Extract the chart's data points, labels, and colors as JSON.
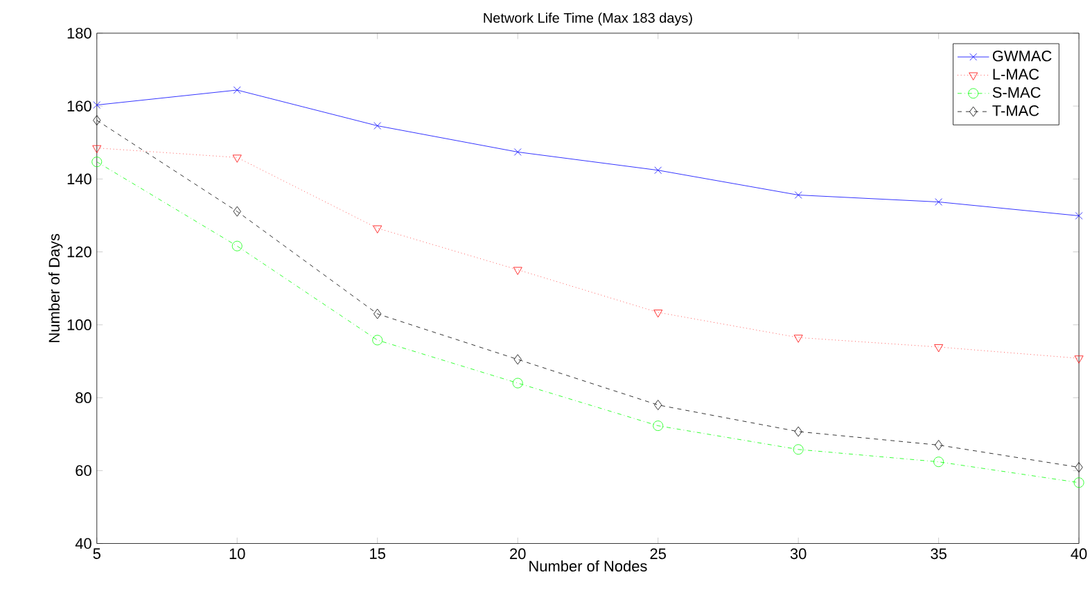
{
  "chart_data": {
    "type": "line",
    "title": "Network Life Time (Max 183 days)",
    "xlabel": "Number of Nodes",
    "ylabel": "Number of Days",
    "x": [
      5,
      10,
      15,
      20,
      25,
      30,
      35,
      40
    ],
    "series": [
      {
        "name": "GWMAC",
        "color": "#0000ff",
        "marker": "cross",
        "line_style": "solid",
        "values": [
          160.3,
          164.4,
          154.6,
          147.4,
          142.4,
          135.6,
          133.7,
          129.9
        ]
      },
      {
        "name": "L-MAC",
        "color": "#ff0000",
        "marker": "triangle",
        "line_style": "dotted",
        "values": [
          148.5,
          145.9,
          126.5,
          115.1,
          103.4,
          96.5,
          93.9,
          90.8
        ]
      },
      {
        "name": "S-MAC",
        "color": "#00ff00",
        "marker": "circle",
        "line_style": "dashdot",
        "values": [
          144.7,
          121.6,
          95.8,
          84.0,
          72.3,
          65.8,
          62.4,
          56.7
        ]
      },
      {
        "name": "T-MAC",
        "color": "#000000",
        "marker": "diamond",
        "line_style": "dashed",
        "values": [
          156.1,
          131.1,
          103.0,
          90.5,
          78.0,
          70.7,
          67.0,
          60.9
        ]
      }
    ],
    "xlim": [
      5,
      40
    ],
    "ylim": [
      40,
      180
    ],
    "xticks": [
      5,
      10,
      15,
      20,
      25,
      30,
      35,
      40
    ],
    "yticks": [
      40,
      60,
      80,
      100,
      120,
      140,
      160,
      180
    ],
    "grid": false,
    "legend": "top right"
  }
}
